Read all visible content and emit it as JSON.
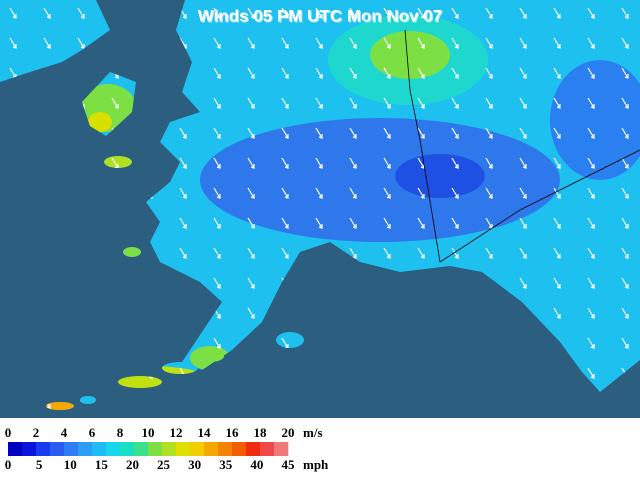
{
  "title": "Winds 05 PM UTC Mon Nov 07",
  "legend": {
    "colors": [
      "#0000c0",
      "#0a14dc",
      "#1a3cf0",
      "#2a5cf4",
      "#2e7cf4",
      "#2c9cf4",
      "#1cbcf4",
      "#18d4ec",
      "#18e0c4",
      "#3ae08a",
      "#7ce044",
      "#b0e020",
      "#e0e000",
      "#f4cc00",
      "#f4a800",
      "#f48400",
      "#f45c00",
      "#f02c10",
      "#f04848",
      "#f07878"
    ],
    "ms_unit": "m/s",
    "ms_ticks": [
      0,
      2,
      4,
      6,
      8,
      10,
      12,
      14,
      16,
      18,
      20
    ],
    "mph_unit": "mph",
    "mph_ticks": [
      0,
      5,
      10,
      15,
      20,
      25,
      30,
      35,
      40,
      45
    ]
  }
}
